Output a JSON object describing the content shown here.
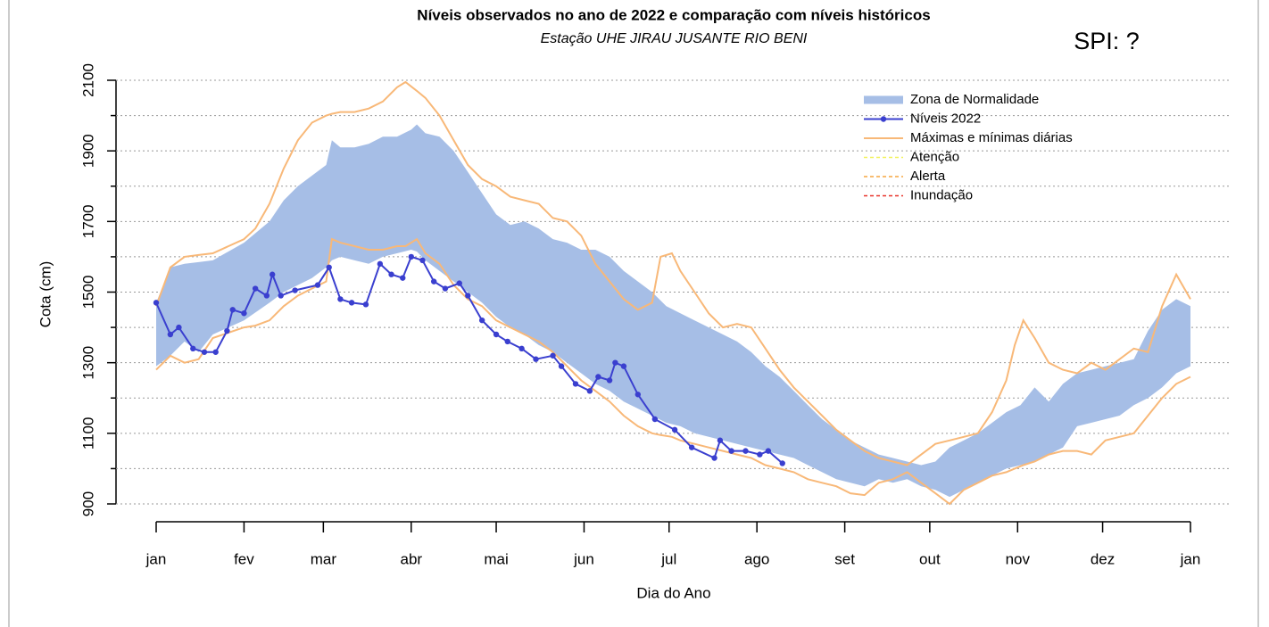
{
  "chart_data": {
    "type": "line",
    "title": "Níveis observados no ano de 2022 e comparação com níveis históricos",
    "subtitle": "Estação UHE JIRAU JUSANTE RIO BENI",
    "annotation": "SPI: ?",
    "x_label": "Dia do Ano",
    "y_label": "Cota (cm)",
    "xlim": [
      0,
      365
    ],
    "ylim": [
      900,
      2100
    ],
    "xticks": [
      {
        "value": 0,
        "label": "jan"
      },
      {
        "value": 31,
        "label": "fev"
      },
      {
        "value": 59,
        "label": "mar"
      },
      {
        "value": 90,
        "label": "abr"
      },
      {
        "value": 120,
        "label": "mai"
      },
      {
        "value": 151,
        "label": "jun"
      },
      {
        "value": 181,
        "label": "jul"
      },
      {
        "value": 212,
        "label": "ago"
      },
      {
        "value": 243,
        "label": "set"
      },
      {
        "value": 273,
        "label": "out"
      },
      {
        "value": 304,
        "label": "nov"
      },
      {
        "value": 334,
        "label": "dez"
      },
      {
        "value": 365,
        "label": "jan"
      }
    ],
    "yticks": [
      900,
      1100,
      1300,
      1500,
      1700,
      1900,
      2100
    ],
    "yminorticks": [
      1000,
      1200,
      1400,
      1600,
      1800,
      2000
    ],
    "grid": true,
    "series": [
      {
        "name": "Zona de Normalidade",
        "type": "band",
        "color": "#a6bee6",
        "x": [
          0,
          5,
          10,
          15,
          20,
          31,
          40,
          45,
          50,
          55,
          60,
          62,
          65,
          70,
          75,
          80,
          85,
          90,
          92,
          95,
          100,
          105,
          110,
          115,
          120,
          125,
          130,
          135,
          140,
          145,
          150,
          155,
          160,
          165,
          170,
          175,
          180,
          185,
          190,
          195,
          200,
          205,
          210,
          215,
          220,
          225,
          230,
          235,
          240,
          245,
          250,
          255,
          260,
          265,
          270,
          275,
          280,
          285,
          290,
          295,
          300,
          305,
          310,
          315,
          320,
          325,
          330,
          335,
          340,
          345,
          350,
          355,
          360,
          365
        ],
        "upper": [
          1470,
          1570,
          1580,
          1585,
          1590,
          1640,
          1700,
          1760,
          1800,
          1830,
          1860,
          1930,
          1910,
          1910,
          1920,
          1940,
          1940,
          1960,
          1975,
          1950,
          1940,
          1900,
          1840,
          1780,
          1720,
          1690,
          1700,
          1680,
          1650,
          1640,
          1620,
          1620,
          1600,
          1560,
          1530,
          1500,
          1460,
          1440,
          1420,
          1400,
          1380,
          1360,
          1330,
          1290,
          1260,
          1220,
          1180,
          1140,
          1110,
          1080,
          1060,
          1040,
          1030,
          1020,
          1010,
          1020,
          1060,
          1080,
          1100,
          1130,
          1160,
          1180,
          1230,
          1190,
          1240,
          1270,
          1280,
          1290,
          1300,
          1310,
          1390,
          1450,
          1480,
          1460
        ],
        "lower": [
          1290,
          1320,
          1360,
          1330,
          1380,
          1420,
          1470,
          1500,
          1520,
          1540,
          1570,
          1590,
          1600,
          1590,
          1580,
          1600,
          1610,
          1620,
          1615,
          1590,
          1560,
          1530,
          1500,
          1470,
          1430,
          1400,
          1380,
          1350,
          1330,
          1300,
          1270,
          1240,
          1220,
          1190,
          1170,
          1150,
          1130,
          1120,
          1100,
          1090,
          1080,
          1070,
          1060,
          1050,
          1040,
          1030,
          1010,
          990,
          970,
          960,
          950,
          970,
          960,
          970,
          950,
          940,
          920,
          940,
          960,
          980,
          1000,
          1010,
          1020,
          1040,
          1060,
          1120,
          1130,
          1140,
          1150,
          1180,
          1200,
          1230,
          1270,
          1290
        ]
      },
      {
        "name": "Níveis 2022",
        "type": "points-line",
        "color": "#3a3fcf",
        "x": [
          0,
          5,
          8,
          13,
          17,
          21,
          25,
          27,
          31,
          35,
          39,
          41,
          44,
          49,
          57,
          61,
          65,
          69,
          74,
          79,
          83,
          87,
          90,
          94,
          98,
          102,
          107,
          110,
          115,
          120,
          124,
          129,
          134,
          140,
          143,
          148,
          153,
          156,
          160,
          162,
          165,
          170,
          176,
          183,
          189,
          197,
          199,
          203,
          208,
          213,
          216,
          221
        ],
        "values": [
          1470,
          1380,
          1400,
          1340,
          1330,
          1330,
          1390,
          1450,
          1440,
          1510,
          1490,
          1550,
          1490,
          1505,
          1520,
          1570,
          1480,
          1470,
          1465,
          1580,
          1550,
          1540,
          1600,
          1590,
          1530,
          1510,
          1525,
          1490,
          1420,
          1380,
          1360,
          1340,
          1310,
          1320,
          1290,
          1240,
          1220,
          1260,
          1250,
          1300,
          1290,
          1210,
          1140,
          1110,
          1060,
          1030,
          1080,
          1050,
          1050,
          1040,
          1050,
          1015
        ]
      },
      {
        "name": "Máximas e mínimas diárias",
        "type": "range-lines",
        "color": "#f8b878",
        "x": [
          0,
          5,
          10,
          15,
          20,
          31,
          35,
          40,
          45,
          50,
          55,
          60,
          62,
          65,
          70,
          75,
          80,
          85,
          88,
          92,
          95,
          100,
          105,
          110,
          115,
          120,
          125,
          130,
          135,
          140,
          145,
          150,
          155,
          160,
          165,
          170,
          175,
          178,
          182,
          185,
          190,
          195,
          200,
          205,
          210,
          215,
          220,
          225,
          230,
          235,
          240,
          245,
          250,
          255,
          260,
          265,
          270,
          275,
          280,
          285,
          290,
          295,
          300,
          303,
          306,
          310,
          315,
          320,
          325,
          330,
          335,
          340,
          345,
          350,
          355,
          360,
          365
        ],
        "max": [
          1460,
          1570,
          1600,
          1605,
          1610,
          1650,
          1680,
          1750,
          1850,
          1930,
          1980,
          2000,
          2005,
          2010,
          2010,
          2020,
          2040,
          2080,
          2095,
          2070,
          2050,
          2000,
          1930,
          1860,
          1820,
          1800,
          1770,
          1760,
          1750,
          1710,
          1700,
          1660,
          1580,
          1530,
          1480,
          1450,
          1470,
          1600,
          1610,
          1560,
          1500,
          1440,
          1400,
          1410,
          1400,
          1340,
          1280,
          1230,
          1190,
          1150,
          1110,
          1080,
          1050,
          1030,
          1020,
          1010,
          1040,
          1070,
          1080,
          1090,
          1100,
          1160,
          1250,
          1350,
          1420,
          1370,
          1300,
          1280,
          1270,
          1300,
          1280,
          1310,
          1340,
          1330,
          1460,
          1550,
          1480
        ],
        "min": [
          1280,
          1320,
          1300,
          1310,
          1370,
          1400,
          1405,
          1420,
          1460,
          1490,
          1510,
          1530,
          1650,
          1640,
          1630,
          1620,
          1620,
          1630,
          1630,
          1650,
          1610,
          1580,
          1520,
          1480,
          1460,
          1420,
          1400,
          1380,
          1360,
          1330,
          1290,
          1250,
          1220,
          1190,
          1150,
          1120,
          1100,
          1095,
          1090,
          1080,
          1070,
          1060,
          1050,
          1040,
          1030,
          1010,
          1000,
          990,
          970,
          960,
          950,
          930,
          925,
          960,
          970,
          990,
          960,
          930,
          900,
          940,
          960,
          980,
          990,
          1000,
          1010,
          1020,
          1040,
          1050,
          1050,
          1040,
          1080,
          1090,
          1100,
          1150,
          1200,
          1240,
          1260
        ]
      },
      {
        "name": "Atenção",
        "type": "reference",
        "color": "#f2f25c"
      },
      {
        "name": "Alerta",
        "type": "reference",
        "color": "#f5a640"
      },
      {
        "name": "Inundação",
        "type": "reference",
        "color": "#e8332a"
      }
    ]
  }
}
